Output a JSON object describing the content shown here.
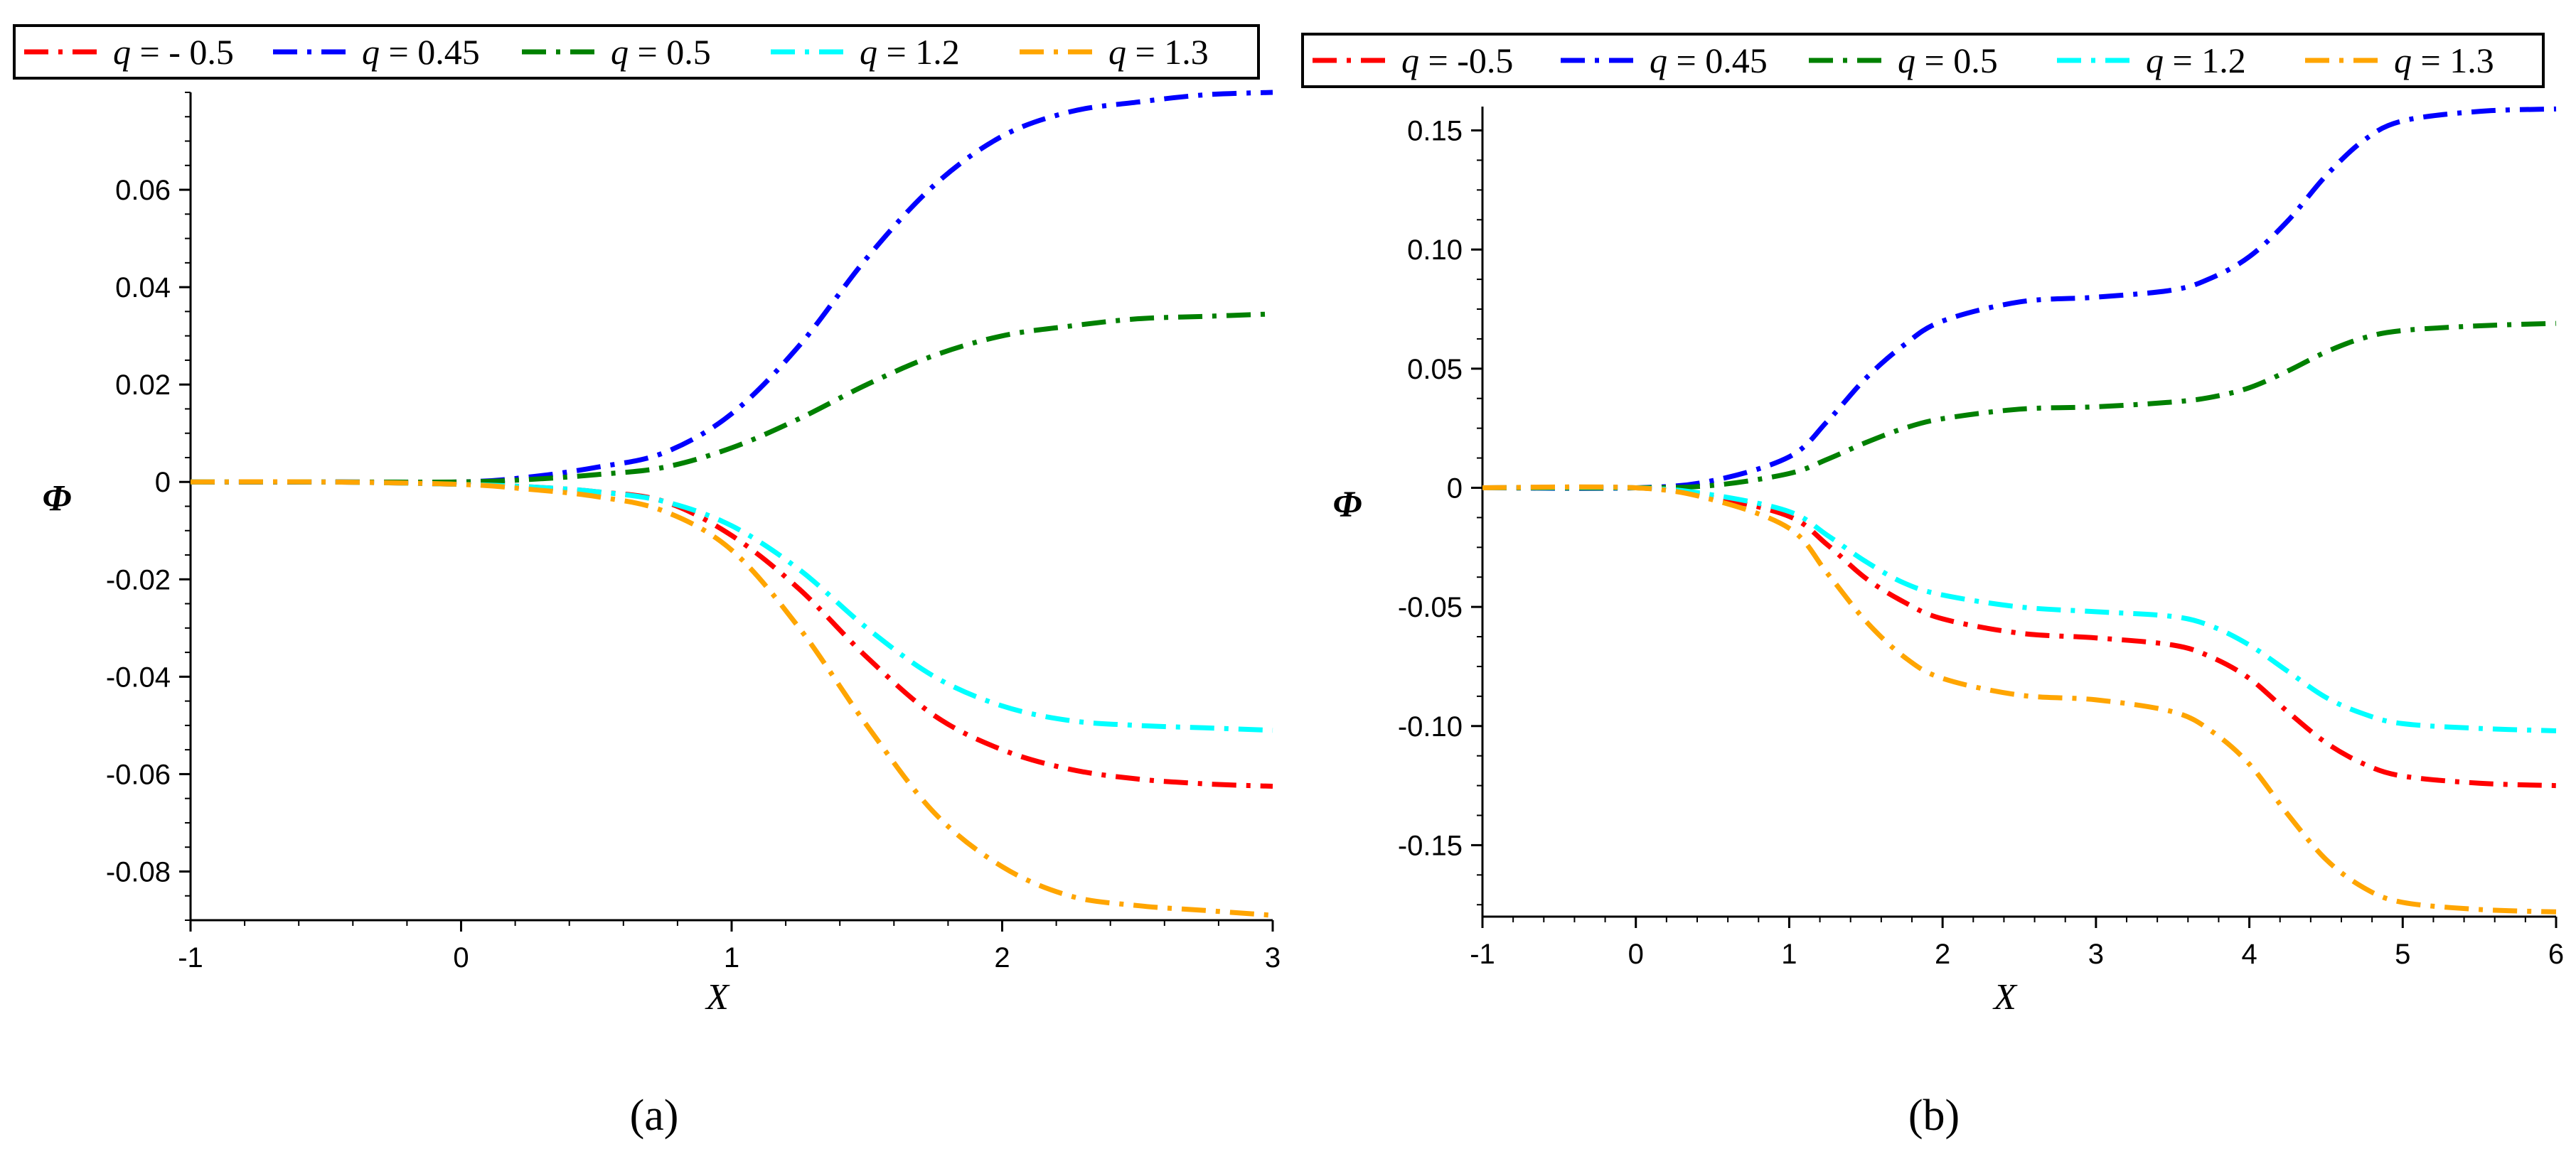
{
  "chart_data": [
    {
      "type": "line",
      "panel": "a",
      "caption": "(a)",
      "xlabel": "X",
      "ylabel": "Φ",
      "xlim": [
        -1,
        3
      ],
      "ylim": [
        -0.09,
        0.08
      ],
      "xticks": [
        -1,
        0,
        1,
        2,
        3
      ],
      "yticks": [
        -0.08,
        -0.06,
        -0.04,
        -0.02,
        0,
        0.02,
        0.04,
        0.06
      ],
      "xtick_labels": [
        "-1",
        "0",
        "1",
        "2",
        "3"
      ],
      "ytick_labels": [
        "-0.08",
        "-0.06",
        "-0.04",
        "-0.02",
        "0",
        "0.02",
        "0.04",
        "0.06"
      ],
      "legend": {
        "placement": "top",
        "labels": [
          "q = - 0.5",
          "q = 0.45",
          "q = 0.5",
          "q = 1.2",
          "q = 1.3"
        ]
      },
      "x": [
        -1,
        -0.5,
        0,
        0.25,
        0.5,
        0.75,
        1,
        1.25,
        1.5,
        1.75,
        2,
        2.25,
        2.5,
        2.75,
        3
      ],
      "series": [
        {
          "name": "q = - 0.5",
          "color": "#ff0000",
          "values": [
            0,
            0,
            -0.0005,
            -0.001,
            -0.002,
            -0.004,
            -0.011,
            -0.022,
            -0.036,
            -0.048,
            -0.055,
            -0.059,
            -0.061,
            -0.062,
            -0.0625
          ]
        },
        {
          "name": "q = 0.45",
          "color": "#0000ff",
          "values": [
            0,
            0,
            0,
            0.001,
            0.003,
            0.006,
            0.014,
            0.028,
            0.046,
            0.061,
            0.071,
            0.076,
            0.078,
            0.0795,
            0.08
          ]
        },
        {
          "name": "q = 0.5",
          "color": "#008000",
          "values": [
            0,
            0,
            0,
            0.0005,
            0.0015,
            0.003,
            0.007,
            0.013,
            0.02,
            0.026,
            0.03,
            0.032,
            0.0335,
            0.034,
            0.0345
          ]
        },
        {
          "name": "q = 1.2",
          "color": "#00ffff",
          "values": [
            0,
            0,
            -0.0005,
            -0.001,
            -0.002,
            -0.004,
            -0.009,
            -0.018,
            -0.03,
            -0.04,
            -0.046,
            -0.049,
            -0.05,
            -0.0505,
            -0.051
          ]
        },
        {
          "name": "q = 1.3",
          "color": "#ffa500",
          "values": [
            0,
            0,
            -0.0005,
            -0.0015,
            -0.003,
            -0.006,
            -0.014,
            -0.03,
            -0.05,
            -0.068,
            -0.079,
            -0.085,
            -0.087,
            -0.088,
            -0.089
          ]
        }
      ]
    },
    {
      "type": "line",
      "panel": "b",
      "caption": "(b)",
      "xlabel": "X",
      "ylabel": "Φ",
      "xlim": [
        -1,
        6
      ],
      "ylim": [
        -0.18,
        0.16
      ],
      "xticks": [
        -1,
        0,
        1,
        2,
        3,
        4,
        5,
        6
      ],
      "yticks": [
        -0.15,
        -0.1,
        -0.05,
        0,
        0.05,
        0.1,
        0.15
      ],
      "xtick_labels": [
        "-1",
        "0",
        "1",
        "2",
        "3",
        "4",
        "5",
        "6"
      ],
      "ytick_labels": [
        "-0.15",
        "-0.10",
        "-0.05",
        "0",
        "0.05",
        "0.10",
        "0.15"
      ],
      "legend": {
        "placement": "top",
        "labels": [
          "q = -0.5",
          "q = 0.45",
          "q = 0.5",
          "q = 1.2",
          "q = 1.3"
        ]
      },
      "x": [
        -1,
        0,
        0.5,
        1,
        1.25,
        1.5,
        1.75,
        2,
        2.5,
        3,
        3.5,
        3.75,
        4,
        4.25,
        4.5,
        4.75,
        5,
        5.5,
        6
      ],
      "series": [
        {
          "name": "q = -0.5",
          "color": "#ff0000",
          "values": [
            0,
            0,
            -0.004,
            -0.012,
            -0.024,
            -0.038,
            -0.048,
            -0.055,
            -0.061,
            -0.063,
            -0.066,
            -0.071,
            -0.08,
            -0.094,
            -0.107,
            -0.116,
            -0.121,
            -0.124,
            -0.125
          ]
        },
        {
          "name": "q = 0.45",
          "color": "#0000ff",
          "values": [
            0,
            0,
            0.003,
            0.013,
            0.028,
            0.046,
            0.06,
            0.07,
            0.078,
            0.08,
            0.083,
            0.088,
            0.097,
            0.112,
            0.131,
            0.146,
            0.154,
            0.158,
            0.159
          ]
        },
        {
          "name": "q = 0.5",
          "color": "#008000",
          "values": [
            0,
            0,
            0.001,
            0.006,
            0.012,
            0.019,
            0.025,
            0.029,
            0.033,
            0.034,
            0.036,
            0.038,
            0.042,
            0.049,
            0.057,
            0.063,
            0.066,
            0.068,
            0.069
          ]
        },
        {
          "name": "q = 1.2",
          "color": "#00ffff",
          "values": [
            0,
            0,
            -0.003,
            -0.01,
            -0.02,
            -0.031,
            -0.04,
            -0.045,
            -0.05,
            -0.052,
            -0.054,
            -0.058,
            -0.066,
            -0.077,
            -0.088,
            -0.095,
            -0.099,
            -0.101,
            -0.102
          ]
        },
        {
          "name": "q = 1.3",
          "color": "#ffa500",
          "values": [
            0,
            0,
            -0.005,
            -0.017,
            -0.036,
            -0.056,
            -0.071,
            -0.08,
            -0.087,
            -0.089,
            -0.094,
            -0.102,
            -0.116,
            -0.137,
            -0.156,
            -0.168,
            -0.174,
            -0.177,
            -0.178
          ]
        }
      ]
    }
  ]
}
